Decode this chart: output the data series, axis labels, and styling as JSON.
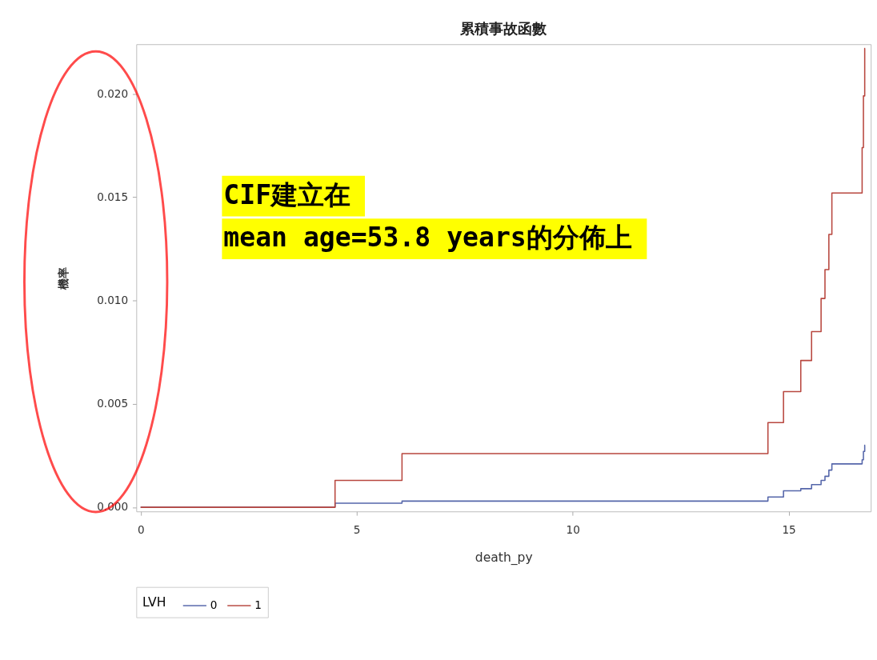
{
  "chart_data": {
    "type": "step",
    "title": "累積事故函數",
    "xlabel": "death_py",
    "ylabel": "機率",
    "legend_title": "LVH",
    "annotations": [
      "CIF建立在",
      "mean age=53.8 years的分佈上"
    ],
    "series": [
      {
        "name": "0",
        "color": "#5566aa",
        "x": [
          0,
          4.5,
          6.05,
          14.52,
          14.88,
          15.28,
          15.53,
          15.75,
          15.84,
          15.93,
          16.0,
          16.7,
          16.73,
          16.76,
          16.77
        ],
        "values": [
          0,
          0.0002,
          0.0003,
          0.0005,
          0.0008,
          0.0009,
          0.0011,
          0.0013,
          0.0015,
          0.0018,
          0.0021,
          0.0023,
          0.0027,
          0.003,
          0.003
        ]
      },
      {
        "name": "1",
        "color": "#b8473f",
        "x": [
          0,
          4.5,
          6.05,
          14.52,
          14.88,
          15.28,
          15.53,
          15.75,
          15.84,
          15.93,
          16.0,
          16.7,
          16.73,
          16.76,
          16.77
        ],
        "values": [
          0,
          0.0013,
          0.0026,
          0.0041,
          0.0056,
          0.0071,
          0.0085,
          0.0101,
          0.0115,
          0.0132,
          0.0152,
          0.0174,
          0.0199,
          0.0222,
          0.0222
        ]
      }
    ],
    "xlim": [
      -0.1,
      16.9
    ],
    "xticks": [
      0,
      5,
      10,
      15
    ],
    "ylim": [
      -0.0002,
      0.0224
    ],
    "yticks": [
      {
        "value": 0,
        "label": "0.000"
      },
      0.005,
      {
        "value": 0.01,
        "label": "0.010"
      },
      0.015,
      {
        "value": 0.02,
        "label": "0.020"
      }
    ],
    "grid": false,
    "legend": "bottom",
    "line_style": "solid",
    "marker": "none"
  }
}
